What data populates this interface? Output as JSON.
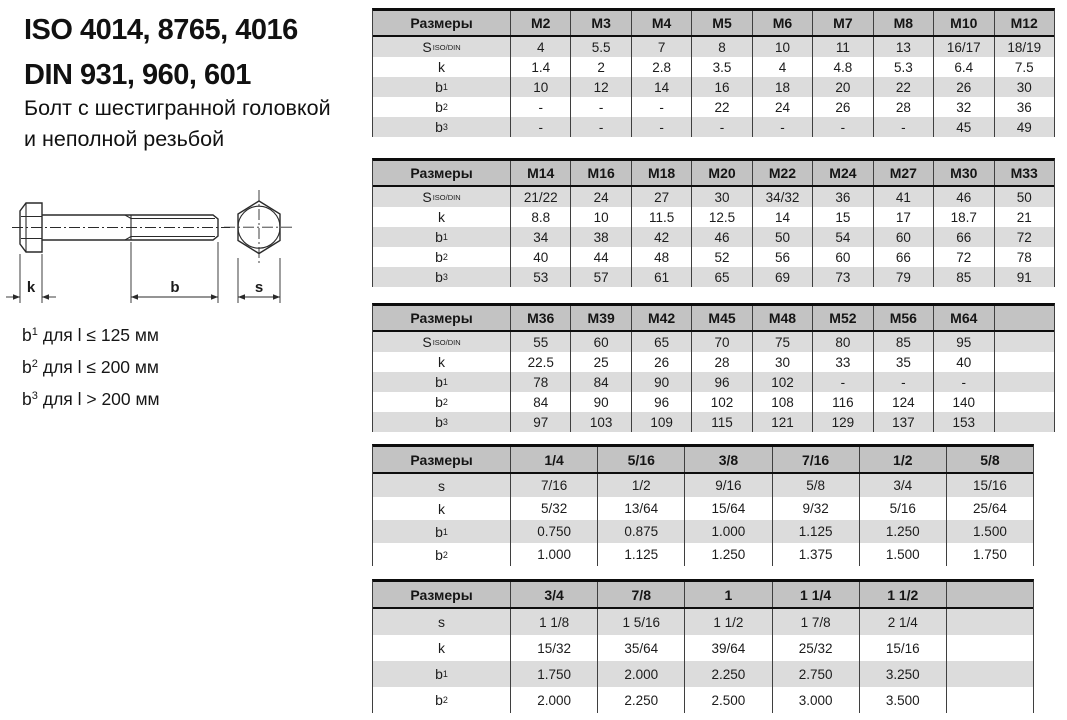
{
  "title": {
    "iso_line": "ISO 4014, 8765, 4016",
    "din_line": "DIN 931, 960, 601",
    "subtitle_line1": "Болт с шестигранной головкой",
    "subtitle_line2": "и неполной резьбой"
  },
  "drawing": {
    "dim_k": "k",
    "dim_b": "b",
    "dim_s": "s"
  },
  "notes": [
    {
      "base": "b",
      "sup": "1",
      "rest": "для l ≤ 125 мм"
    },
    {
      "base": "b",
      "sup": "2",
      "rest": "для l ≤ 200 мм"
    },
    {
      "base": "b",
      "sup": "3",
      "rest": "для l > 200 мм"
    }
  ],
  "colors": {
    "header_bg": "#c3c3c3",
    "stripe_bg": "#dcdcdc",
    "border": "#0d0d0d",
    "text": "#1b1b1b"
  },
  "tables": [
    {
      "header": [
        "Размеры",
        "M2",
        "M3",
        "M4",
        "M5",
        "M6",
        "M7",
        "M8",
        "M10",
        "M12"
      ],
      "rows": [
        {
          "label": "S",
          "sub": "ISO/DIN",
          "values": [
            "4",
            "5.5",
            "7",
            "8",
            "10",
            "11",
            "13",
            "16/17",
            "18/19"
          ]
        },
        {
          "label": "k",
          "values": [
            "1.4",
            "2",
            "2.8",
            "3.5",
            "4",
            "4.8",
            "5.3",
            "6.4",
            "7.5"
          ]
        },
        {
          "label": "b",
          "sup": "1",
          "values": [
            "10",
            "12",
            "14",
            "16",
            "18",
            "20",
            "22",
            "26",
            "30"
          ]
        },
        {
          "label": "b",
          "sup": "2",
          "values": [
            "-",
            "-",
            "-",
            "22",
            "24",
            "26",
            "28",
            "32",
            "36"
          ]
        },
        {
          "label": "b",
          "sup": "3",
          "values": [
            "-",
            "-",
            "-",
            "-",
            "-",
            "-",
            "-",
            "45",
            "49"
          ]
        }
      ]
    },
    {
      "header": [
        "Размеры",
        "M14",
        "M16",
        "M18",
        "M20",
        "M22",
        "M24",
        "M27",
        "M30",
        "M33"
      ],
      "rows": [
        {
          "label": "S",
          "sub": "ISO/DIN",
          "values": [
            "21/22",
            "24",
            "27",
            "30",
            "34/32",
            "36",
            "41",
            "46",
            "50"
          ]
        },
        {
          "label": "k",
          "values": [
            "8.8",
            "10",
            "11.5",
            "12.5",
            "14",
            "15",
            "17",
            "18.7",
            "21"
          ]
        },
        {
          "label": "b",
          "sup": "1",
          "values": [
            "34",
            "38",
            "42",
            "46",
            "50",
            "54",
            "60",
            "66",
            "72"
          ]
        },
        {
          "label": "b",
          "sup": "2",
          "values": [
            "40",
            "44",
            "48",
            "52",
            "56",
            "60",
            "66",
            "72",
            "78"
          ]
        },
        {
          "label": "b",
          "sup": "3",
          "values": [
            "53",
            "57",
            "61",
            "65",
            "69",
            "73",
            "79",
            "85",
            "91"
          ]
        }
      ]
    },
    {
      "header": [
        "Размеры",
        "M36",
        "M39",
        "M42",
        "M45",
        "M48",
        "M52",
        "M56",
        "M64",
        ""
      ],
      "rows": [
        {
          "label": "S",
          "sub": "ISO/DIN",
          "values": [
            "55",
            "60",
            "65",
            "70",
            "75",
            "80",
            "85",
            "95",
            ""
          ]
        },
        {
          "label": "k",
          "values": [
            "22.5",
            "25",
            "26",
            "28",
            "30",
            "33",
            "35",
            "40",
            ""
          ]
        },
        {
          "label": "b",
          "sup": "1",
          "values": [
            "78",
            "84",
            "90",
            "96",
            "102",
            "-",
            "-",
            "-",
            ""
          ]
        },
        {
          "label": "b",
          "sup": "2",
          "values": [
            "84",
            "90",
            "96",
            "102",
            "108",
            "116",
            "124",
            "140",
            ""
          ]
        },
        {
          "label": "b",
          "sup": "3",
          "values": [
            "97",
            "103",
            "109",
            "115",
            "121",
            "129",
            "137",
            "153",
            ""
          ]
        }
      ]
    },
    {
      "header": [
        "Размеры",
        "1/4",
        "5/16",
        "3/8",
        "7/16",
        "1/2",
        "5/8"
      ],
      "rows": [
        {
          "label": "s",
          "values": [
            "7/16",
            "1/2",
            "9/16",
            "5/8",
            "3/4",
            "15/16"
          ]
        },
        {
          "label": "k",
          "values": [
            "5/32",
            "13/64",
            "15/64",
            "9/32",
            "5/16",
            "25/64"
          ]
        },
        {
          "label": "b",
          "sup": "1",
          "values": [
            "0.750",
            "0.875",
            "1.000",
            "1.125",
            "1.250",
            "1.500"
          ]
        },
        {
          "label": "b",
          "sup": "2",
          "values": [
            "1.000",
            "1.125",
            "1.250",
            "1.375",
            "1.500",
            "1.750"
          ]
        }
      ]
    },
    {
      "header": [
        "Размеры",
        "3/4",
        "7/8",
        "1",
        "1 1/4",
        "1 1/2",
        ""
      ],
      "rows": [
        {
          "label": "s",
          "values": [
            "1 1/8",
            "1 5/16",
            "1 1/2",
            "1 7/8",
            "2 1/4",
            ""
          ]
        },
        {
          "label": "k",
          "values": [
            "15/32",
            "35/64",
            "39/64",
            "25/32",
            "15/16",
            ""
          ]
        },
        {
          "label": "b",
          "sup": "1",
          "values": [
            "1.750",
            "2.000",
            "2.250",
            "2.750",
            "3.250",
            ""
          ]
        },
        {
          "label": "b",
          "sup": "2",
          "values": [
            "2.000",
            "2.250",
            "2.500",
            "3.000",
            "3.500",
            ""
          ]
        }
      ]
    }
  ]
}
